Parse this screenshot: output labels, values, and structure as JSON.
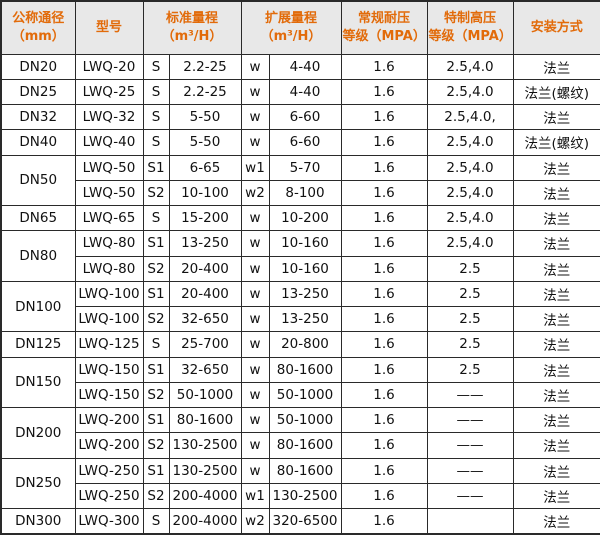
{
  "table": {
    "headers": {
      "dn": {
        "line1": "公称通径",
        "line2": "（mm）"
      },
      "model": {
        "line1": "型号"
      },
      "std": {
        "line1": "标准量程",
        "line2": "（m³/H）"
      },
      "ext": {
        "line1": "扩展量程",
        "line2": "（m³/H）"
      },
      "pressure": {
        "line1": "常规耐压",
        "line2": "等级（MPA）"
      },
      "high_pressure": {
        "line1": "特制高压",
        "line2": "等级（MPA）"
      },
      "install": {
        "line1": "安装方式"
      }
    },
    "style": {
      "header_text_color": "#e26b0a",
      "header_bg_color": "#e8e8e8",
      "border_color": "#2a2a2a",
      "body_text_color": "#111111"
    },
    "rows": [
      {
        "dn": "DN20",
        "dn_rowspan": 1,
        "model": "LWQ-20",
        "std_code": "S",
        "std_range": "2.2-25",
        "ext_code": "w",
        "ext_range": "4-40",
        "pressure": "1.6",
        "high_pressure": "2.5,4.0",
        "install": "法兰"
      },
      {
        "dn": "DN25",
        "dn_rowspan": 1,
        "model": "LWQ-25",
        "std_code": "S",
        "std_range": "2.2-25",
        "ext_code": "w",
        "ext_range": "4-40",
        "pressure": "1.6",
        "high_pressure": "2.5,4.0",
        "install": "法兰(螺纹)"
      },
      {
        "dn": "DN32",
        "dn_rowspan": 1,
        "model": "LWQ-32",
        "std_code": "S",
        "std_range": "5-50",
        "ext_code": "w",
        "ext_range": "6-60",
        "pressure": "1.6",
        "high_pressure": "2.5,4.0,",
        "install": "法兰"
      },
      {
        "dn": "DN40",
        "dn_rowspan": 1,
        "model": "LWQ-40",
        "std_code": "S",
        "std_range": "5-50",
        "ext_code": "w",
        "ext_range": "6-60",
        "pressure": "1.6",
        "high_pressure": "2.5,4.0",
        "install": "法兰(螺纹)"
      },
      {
        "dn": "DN50",
        "dn_rowspan": 2,
        "model": "LWQ-50",
        "std_code": "S1",
        "std_range": "6-65",
        "ext_code": "w1",
        "ext_range": "5-70",
        "pressure": "1.6",
        "high_pressure": "2.5,4.0",
        "install": "法兰"
      },
      {
        "dn": null,
        "dn_rowspan": 0,
        "model": "LWQ-50",
        "std_code": "S2",
        "std_range": "10-100",
        "ext_code": "w2",
        "ext_range": "8-100",
        "pressure": "1.6",
        "high_pressure": "2.5,4.0",
        "install": "法兰"
      },
      {
        "dn": "DN65",
        "dn_rowspan": 1,
        "model": "LWQ-65",
        "std_code": "S",
        "std_range": "15-200",
        "ext_code": "w",
        "ext_range": "10-200",
        "pressure": "1.6",
        "high_pressure": "2.5,4.0",
        "install": "法兰"
      },
      {
        "dn": "DN80",
        "dn_rowspan": 2,
        "model": "LWQ-80",
        "std_code": "S1",
        "std_range": "13-250",
        "ext_code": "w",
        "ext_range": "10-160",
        "pressure": "1.6",
        "high_pressure": "2.5,4.0",
        "install": "法兰"
      },
      {
        "dn": null,
        "dn_rowspan": 0,
        "model": "LWQ-80",
        "std_code": "S2",
        "std_range": "20-400",
        "ext_code": "w",
        "ext_range": "10-160",
        "pressure": "1.6",
        "high_pressure": "2.5",
        "install": "法兰"
      },
      {
        "dn": "DN100",
        "dn_rowspan": 2,
        "model": "LWQ-100",
        "std_code": "S1",
        "std_range": "20-400",
        "ext_code": "w",
        "ext_range": "13-250",
        "pressure": "1.6",
        "high_pressure": "2.5",
        "install": "法兰"
      },
      {
        "dn": null,
        "dn_rowspan": 0,
        "model": "LWQ-100",
        "std_code": "S2",
        "std_range": "32-650",
        "ext_code": "w",
        "ext_range": "13-250",
        "pressure": "1.6",
        "high_pressure": "2.5",
        "install": "法兰"
      },
      {
        "dn": "DN125",
        "dn_rowspan": 1,
        "model": "LWQ-125",
        "std_code": "S",
        "std_range": "25-700",
        "ext_code": "w",
        "ext_range": "20-800",
        "pressure": "1.6",
        "high_pressure": "2.5",
        "install": "法兰"
      },
      {
        "dn": "DN150",
        "dn_rowspan": 2,
        "model": "LWQ-150",
        "std_code": "S1",
        "std_range": "32-650",
        "ext_code": "w",
        "ext_range": "80-1600",
        "pressure": "1.6",
        "high_pressure": "2.5",
        "install": "法兰"
      },
      {
        "dn": null,
        "dn_rowspan": 0,
        "model": "LWQ-150",
        "std_code": "S2",
        "std_range": "50-1000",
        "ext_code": "w",
        "ext_range": "50-1000",
        "pressure": "1.6",
        "high_pressure": "——",
        "install": "法兰"
      },
      {
        "dn": "DN200",
        "dn_rowspan": 2,
        "model": "LWQ-200",
        "std_code": "S1",
        "std_range": "80-1600",
        "ext_code": "w",
        "ext_range": "50-1000",
        "pressure": "1.6",
        "high_pressure": "——",
        "install": "法兰"
      },
      {
        "dn": null,
        "dn_rowspan": 0,
        "model": "LWQ-200",
        "std_code": "S2",
        "std_range": "130-2500",
        "ext_code": "w",
        "ext_range": "80-1600",
        "pressure": "1.6",
        "high_pressure": "——",
        "install": "法兰"
      },
      {
        "dn": "DN250",
        "dn_rowspan": 2,
        "model": "LWQ-250",
        "std_code": "S1",
        "std_range": "130-2500",
        "ext_code": "w",
        "ext_range": "80-1600",
        "pressure": "1.6",
        "high_pressure": "——",
        "install": "法兰"
      },
      {
        "dn": null,
        "dn_rowspan": 0,
        "model": "LWQ-250",
        "std_code": "S2",
        "std_range": "200-4000",
        "ext_code": "w1",
        "ext_range": "130-2500",
        "pressure": "1.6",
        "high_pressure": "——",
        "install": "法兰"
      },
      {
        "dn": "DN300",
        "dn_rowspan": 1,
        "model": "LWQ-300",
        "std_code": "S",
        "std_range": "200-4000",
        "ext_code": "w2",
        "ext_range": "320-6500",
        "pressure": "1.6",
        "high_pressure": "",
        "install": "法兰"
      }
    ]
  }
}
